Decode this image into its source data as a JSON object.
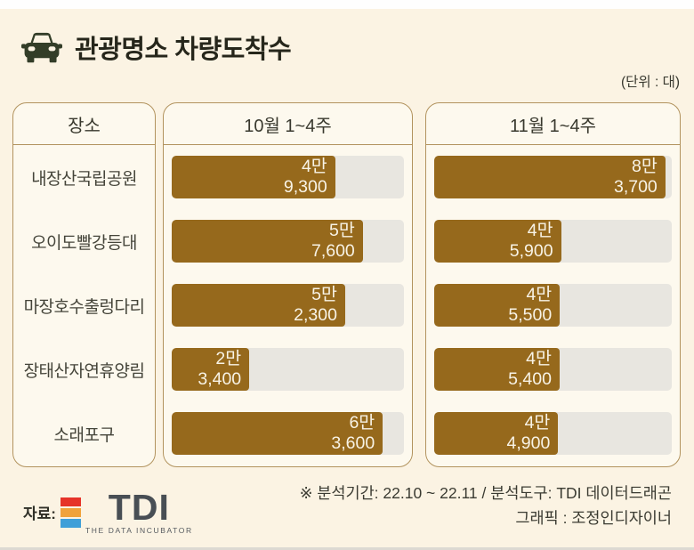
{
  "header": {
    "title": "관광명소 차량도착수",
    "unit_label": "(단위 : 대)"
  },
  "table": {
    "place_header": "장소",
    "places": [
      "내장산국립공원",
      "오이도빨강등대",
      "마장호수출렁다리",
      "장태산자연휴양림",
      "소래포구"
    ]
  },
  "chart_data": {
    "type": "bar",
    "title": "관광명소 차량도착수",
    "unit": "대",
    "orientation": "horizontal",
    "grid": false,
    "legend_position": "column-headers",
    "categories": [
      "내장산국립공원",
      "오이도빨강등대",
      "마장호수출렁다리",
      "장태산자연휴양림",
      "소래포구"
    ],
    "series": [
      {
        "name": "10월 1~4주",
        "values": [
          49300,
          57600,
          52300,
          23400,
          63600
        ],
        "xmax": 70000
      },
      {
        "name": "11월 1~4주",
        "values": [
          83700,
          45900,
          45500,
          45400,
          44900
        ],
        "xmax": 86000
      }
    ],
    "value_labels": [
      [
        "4만 9,300",
        "5만 7,600",
        "5만 2,300",
        "2만 3,400",
        "6만 3,600"
      ],
      [
        "8만 3,700",
        "4만 5,900",
        "4만 5,500",
        "4만 5,400",
        "4만 4,900"
      ]
    ],
    "bar_color": "#96691c",
    "track_color": "#e8e6e0",
    "value_text_color": "#f8f3e6"
  },
  "footer": {
    "source_label": "자료:",
    "logo": {
      "text": "TDI",
      "subtext": "THE DATA INCUBATOR",
      "bar_colors": [
        "#e63329",
        "#f0a23b",
        "#3f9fd8"
      ]
    },
    "note_line1": "※ 분석기간: 22.10 ~ 22.11 / 분석도구: TDI 데이터드래곤",
    "note_line2": "그래픽 : 조정인디자이너"
  },
  "colors": {
    "page_background": "#fbf3e3",
    "panel_background": "#fdf9ee",
    "panel_border": "#b2935e",
    "title_text": "#26261b",
    "car_icon": "#333d28"
  }
}
